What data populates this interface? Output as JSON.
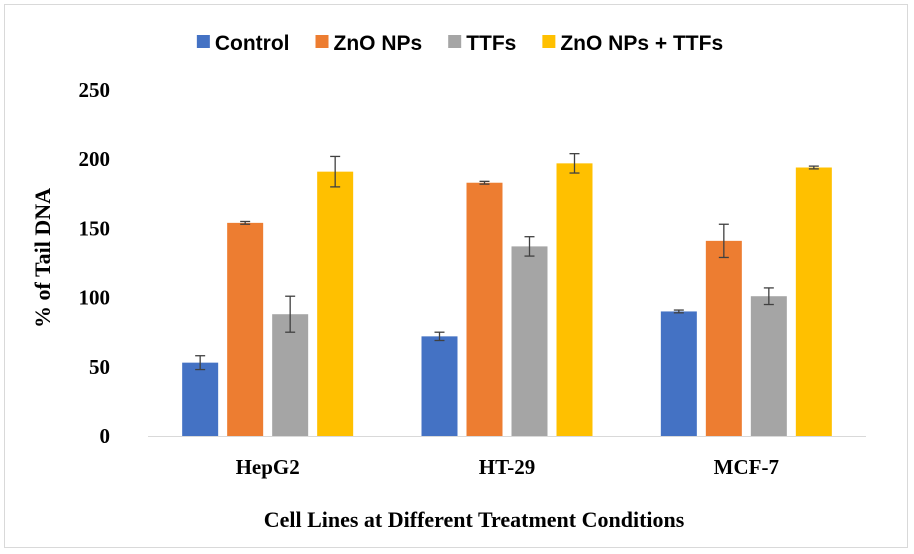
{
  "chart_data": {
    "type": "bar",
    "title": "",
    "xlabel": "Cell Lines at Different Treatment Conditions",
    "ylabel": "% of Tail DNA",
    "ylim": [
      0,
      250
    ],
    "yticks": [
      0,
      50,
      100,
      150,
      200,
      250
    ],
    "grid": false,
    "legend_position": "top",
    "categories": [
      "HepG2",
      "HT-29",
      "MCF-7"
    ],
    "series": [
      {
        "name": "Control",
        "color": "#4472C4",
        "values": [
          53,
          72,
          90
        ],
        "errors": [
          5,
          3,
          1
        ]
      },
      {
        "name": "ZnO NPs",
        "color": "#ED7D31",
        "values": [
          154,
          183,
          141
        ],
        "errors": [
          1,
          1,
          12
        ]
      },
      {
        "name": "TTFs",
        "color": "#A5A5A5",
        "values": [
          88,
          137,
          101
        ],
        "errors": [
          13,
          7,
          6
        ]
      },
      {
        "name": "ZnO NPs + TTFs",
        "color": "#FFC000",
        "values": [
          191,
          197,
          194
        ],
        "errors": [
          11,
          7,
          1
        ]
      }
    ]
  }
}
